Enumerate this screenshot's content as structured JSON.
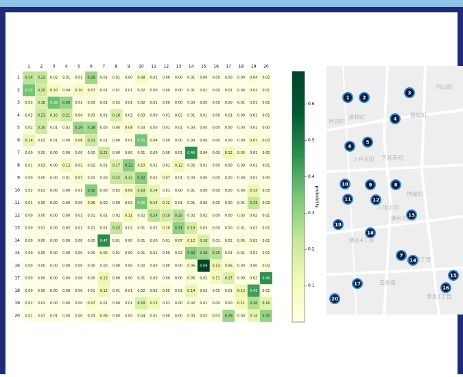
{
  "chart_data": {
    "type": "heatmap",
    "x_categories": [
      "1",
      "2",
      "3",
      "4",
      "5",
      "6",
      "7",
      "8",
      "9",
      "10",
      "11",
      "12",
      "13",
      "14",
      "15",
      "16",
      "17",
      "18",
      "19",
      "20"
    ],
    "y_categories": [
      "1",
      "2",
      "3",
      "4",
      "5",
      "6",
      "7",
      "8",
      "9",
      "10",
      "11",
      "12",
      "13",
      "14",
      "15",
      "16",
      "17",
      "18",
      "19",
      "20"
    ],
    "values": [
      [
        0.24,
        0.23,
        0.02,
        0.01,
        0.01,
        0.29,
        0.01,
        0.01,
        0.0,
        0.08,
        0.01,
        0.0,
        0.0,
        0.01,
        0.0,
        0.0,
        0.0,
        0.0,
        0.04,
        0.02
      ],
      [
        0.35,
        0.2,
        0.1,
        0.04,
        0.1,
        0.07,
        0.01,
        0.01,
        0.01,
        0.02,
        0.0,
        0.0,
        0.0,
        0.01,
        0.01,
        0.0,
        0.01,
        0.0,
        0.02,
        0.01
      ],
      [
        0.03,
        0.18,
        0.36,
        0.3,
        0.01,
        0.03,
        0.01,
        0.02,
        0.01,
        0.02,
        0.01,
        0.0,
        0.0,
        0.0,
        0.0,
        0.0,
        0.0,
        0.01,
        0.01,
        0.01
      ],
      [
        0.02,
        0.21,
        0.16,
        0.21,
        0.04,
        0.03,
        0.01,
        0.18,
        0.02,
        0.03,
        0.0,
        0.01,
        0.02,
        0.01,
        0.01,
        0.0,
        0.01,
        0.0,
        0.01,
        0.01
      ],
      [
        0.02,
        0.2,
        0.01,
        0.02,
        0.29,
        0.28,
        0.0,
        0.04,
        0.08,
        0.03,
        0.0,
        0.01,
        0.01,
        0.0,
        0.0,
        0.0,
        0.0,
        0.0,
        0.01,
        0.0
      ],
      [
        0.14,
        0.02,
        0.01,
        0.0,
        0.08,
        0.21,
        0.01,
        0.0,
        0.01,
        0.35,
        0.04,
        0.0,
        0.0,
        0.0,
        0.0,
        0.0,
        0.0,
        0.0,
        0.07,
        0.03
      ],
      [
        0.0,
        0.0,
        0.0,
        0.0,
        0.0,
        0.0,
        0.21,
        0.0,
        0.0,
        0.01,
        0.0,
        0.0,
        0.01,
        0.46,
        0.04,
        0.0,
        0.12,
        0.05,
        0.01,
        0.05
      ],
      [
        0.01,
        0.03,
        0.0,
        0.12,
        0.03,
        0.02,
        0.01,
        0.17,
        0.32,
        0.1,
        0.01,
        0.01,
        0.12,
        0.02,
        0.01,
        0.0,
        0.0,
        0.0,
        0.01,
        0.01
      ],
      [
        0.0,
        0.0,
        0.0,
        0.01,
        0.07,
        0.02,
        0.0,
        0.22,
        0.22,
        0.32,
        0.02,
        0.07,
        0.01,
        0.0,
        0.0,
        0.0,
        0.0,
        0.0,
        0.01,
        0.0
      ],
      [
        0.02,
        0.01,
        0.0,
        0.0,
        0.01,
        0.32,
        0.0,
        0.02,
        0.09,
        0.19,
        0.14,
        0.01,
        0.0,
        0.01,
        0.0,
        0.0,
        0.0,
        0.0,
        0.13,
        0.03
      ],
      [
        0.01,
        0.0,
        0.0,
        0.0,
        0.0,
        0.06,
        0.0,
        0.0,
        0.02,
        0.35,
        0.14,
        0.12,
        0.01,
        0.01,
        0.0,
        0.0,
        0.0,
        0.01,
        0.23,
        0.03
      ],
      [
        0.0,
        0.0,
        0.0,
        0.0,
        0.01,
        0.01,
        0.01,
        0.02,
        0.11,
        0.02,
        0.24,
        0.19,
        0.25,
        0.02,
        0.02,
        0.0,
        0.0,
        0.03,
        0.02,
        0.01
      ],
      [
        0.0,
        0.01,
        0.0,
        0.02,
        0.01,
        0.01,
        0.01,
        0.23,
        0.02,
        0.01,
        0.01,
        0.1,
        0.31,
        0.19,
        0.03,
        0.0,
        0.0,
        0.01,
        0.01,
        0.01
      ],
      [
        0.0,
        0.0,
        0.0,
        0.0,
        0.0,
        0.0,
        0.47,
        0.01,
        0.0,
        0.01,
        0.0,
        0.01,
        0.07,
        0.12,
        0.18,
        0.01,
        0.02,
        0.05,
        0.02,
        0.01
      ],
      [
        0.0,
        0.0,
        0.0,
        0.0,
        0.0,
        0.0,
        0.06,
        0.01,
        0.0,
        0.01,
        0.01,
        0.0,
        0.02,
        0.32,
        0.28,
        0.25,
        0.01,
        0.01,
        0.01,
        0.01
      ],
      [
        0.0,
        0.0,
        0.0,
        0.0,
        0.0,
        0.0,
        0.0,
        0.0,
        0.0,
        0.0,
        0.0,
        0.0,
        0.0,
        0.06,
        0.69,
        0.13,
        0.06,
        0.0,
        0.0,
        0.02
      ],
      [
        0.0,
        0.0,
        0.0,
        0.0,
        0.0,
        0.0,
        0.13,
        0.0,
        0.0,
        0.01,
        0.0,
        0.0,
        0.0,
        0.05,
        0.02,
        0.11,
        0.17,
        0.0,
        0.02,
        0.46
      ],
      [
        0.0,
        0.0,
        0.0,
        0.0,
        0.0,
        0.01,
        0.12,
        0.01,
        0.01,
        0.02,
        0.02,
        0.05,
        0.01,
        0.14,
        0.02,
        0.0,
        0.01,
        0.13,
        0.43,
        0.01
      ],
      [
        0.02,
        0.01,
        0.0,
        0.0,
        0.0,
        0.07,
        0.01,
        0.0,
        0.01,
        0.18,
        0.12,
        0.01,
        0.0,
        0.02,
        0.01,
        0.0,
        0.0,
        0.11,
        0.26,
        0.16
      ],
      [
        0.01,
        0.01,
        0.01,
        0.0,
        0.0,
        0.03,
        0.06,
        0.0,
        0.0,
        0.04,
        0.01,
        0.0,
        0.0,
        0.03,
        0.02,
        0.03,
        0.29,
        0.0,
        0.14,
        0.3
      ]
    ],
    "value_labels": [
      [
        "0.24",
        "0.23",
        "0.02",
        "0.01",
        "0.01",
        "0.29",
        "0.01",
        "0.01",
        "0.00",
        "0.08",
        "0.01",
        "0.00",
        "0.00",
        "0.01",
        "0.00",
        "0.00",
        "0.00",
        "0.00",
        "0.04",
        "0.02"
      ],
      [
        "0.35",
        "0.20",
        "0.10",
        "0.04",
        "0.10",
        "0.07",
        "0.01",
        "0.01",
        "0.01",
        "0.02",
        "0.00",
        "0.00",
        "0.00",
        "0.01",
        "0.01",
        "0.00",
        "0.01",
        "0.00",
        "0.02",
        "0.01"
      ],
      [
        "0.03",
        "0.18",
        "0.36",
        "0.30",
        "0.01",
        "0.03",
        "0.01",
        "0.02",
        "0.01",
        "0.02",
        "0.01",
        "0.00",
        "0.00",
        "0.00",
        "0.00",
        "0.00",
        "0.00",
        "0.01",
        "0.01",
        "0.01"
      ],
      [
        "0.02",
        "0.21",
        "0.16",
        "0.21",
        "0.04",
        "0.03",
        "0.01",
        "0.18",
        "0.02",
        "0.03",
        "0.00",
        "0.01",
        "0.02",
        "0.01",
        "0.01",
        "0.00",
        "0.01",
        "0.00",
        "0.01",
        "0.01"
      ],
      [
        "0.02",
        "0.20",
        "0.01",
        "0.02",
        "0.29",
        "0.28",
        "0.00",
        "0.04",
        "0.08",
        "0.03",
        "0.00",
        "0.01",
        "0.01",
        "0.00",
        "0.00",
        "0.00",
        "0.00",
        "0.00",
        "0.01",
        "0.00"
      ],
      [
        "0.14",
        "0.02",
        "0.01",
        "0.00",
        "0.08",
        "0.21",
        "0.01",
        "0.00",
        "0.01",
        "0.35",
        "0.04",
        "0.00",
        "0.00",
        "0.00",
        "0.00",
        "0.00",
        "0.00",
        "0.00",
        "0.07",
        "0.03"
      ],
      [
        "0.00",
        "0.00",
        "0.00",
        "0.00",
        "0.00",
        "0.00",
        "0.21",
        "0.00",
        "0.00",
        "0.01",
        "0.00",
        "0.00",
        "0.01",
        "0.46",
        "0.04",
        "0.00",
        "0.12",
        "0.05",
        "0.01",
        "0.05"
      ],
      [
        "0.01",
        "0.03",
        "0.00",
        "0.12",
        "0.03",
        "0.02",
        "0.01",
        "0.17",
        "0.32",
        "0.10",
        "0.01",
        "0.01",
        "0.12",
        "0.02",
        "0.01",
        "0.00",
        "0.00",
        "0.00",
        "0.01",
        "0.01"
      ],
      [
        "0.00",
        "0.00",
        "0.00",
        "0.01",
        "0.07",
        "0.02",
        "0.00",
        "0.22",
        "0.22",
        "0.32",
        "0.02",
        "0.07",
        "0.01",
        "0.00",
        "0.00",
        "0.00",
        "0.00",
        "0.00",
        "0.01",
        "0.00"
      ],
      [
        "0.02",
        "0.01",
        "0.00",
        "0.00",
        "0.01",
        "0.32",
        "0.00",
        "0.02",
        "0.09",
        "0.19",
        "0.14",
        "0.01",
        "0.00",
        "0.01",
        "0.00",
        "0.00",
        "0.00",
        "0.00",
        "0.13",
        "0.03"
      ],
      [
        "0.01",
        "0.00",
        "0.00",
        "0.00",
        "0.00",
        "0.06",
        "0.00",
        "0.00",
        "0.02",
        "0.35",
        "0.14",
        "0.12",
        "0.01",
        "0.01",
        "0.00",
        "0.00",
        "0.00",
        "0.01",
        "0.23",
        "0.03"
      ],
      [
        "0.00",
        "0.00",
        "0.00",
        "0.00",
        "0.01",
        "0.01",
        "0.01",
        "0.02",
        "0.11",
        "0.02",
        "0.24",
        "0.19",
        "0.25",
        "0.02",
        "0.02",
        "0.00",
        "0.00",
        "0.03",
        "0.02",
        "0.01"
      ],
      [
        "0.00",
        "0.01",
        "0.00",
        "0.02",
        "0.01",
        "0.01",
        "0.01",
        "0.23",
        "0.02",
        "0.01",
        "0.01",
        "0.10",
        "0.31",
        "0.19",
        "0.03",
        "0.00",
        "0.00",
        "0.01",
        "0.01",
        "0.01"
      ],
      [
        "0.00",
        "0.00",
        "0.00",
        "0.00",
        "0.00",
        "0.00",
        "0.47",
        "0.01",
        "0.00",
        "0.01",
        "0.00",
        "0.01",
        "0.07",
        "0.12",
        "0.18",
        "0.01",
        "0.02",
        "0.05",
        "0.02",
        "0.01"
      ],
      [
        "0.00",
        "0.00",
        "0.00",
        "0.00",
        "0.00",
        "0.00",
        "0.06",
        "0.01",
        "0.00",
        "0.01",
        "0.01",
        "0.00",
        "0.02",
        "0.32",
        "0.28",
        "0.25",
        "0.01",
        "0.01",
        "0.01",
        "0.01"
      ],
      [
        "0.00",
        "0.00",
        "0.00",
        "0.00",
        "0.00",
        "0.00",
        "0.00",
        "0.00",
        "0.00",
        "0.00",
        "0.00",
        "0.00",
        "0.00",
        "0.06",
        "0.69",
        "0.13",
        "0.06",
        "0.00",
        "0.00",
        "0.02"
      ],
      [
        "0.00",
        "0.00",
        "0.00",
        "0.00",
        "0.00",
        "0.00",
        "0.13",
        "0.00",
        "0.00",
        "0.01",
        "0.00",
        "0.00",
        "0.00",
        "0.05",
        "0.02",
        "0.11",
        "0.17",
        "0.00",
        "0.02",
        "0.46"
      ],
      [
        "0.00",
        "0.00",
        "0.00",
        "0.00",
        "0.00",
        "0.01",
        "0.12",
        "0.01",
        "0.01",
        "0.02",
        "0.02",
        "0.05",
        "0.01",
        "0.14",
        "0.02",
        "0.00",
        "0.01",
        "0.13",
        "0.43",
        "0.01"
      ],
      [
        "0.02",
        "0.01",
        "0.00",
        "0.00",
        "0.00",
        "0.07",
        "0.01",
        "0.00",
        "0.01",
        "0.18",
        "0.12",
        "0.01",
        "0.00",
        "0.02",
        "0.01",
        "0.00",
        "0.00",
        "0.11",
        "0.26",
        "0.16"
      ],
      [
        "0.01",
        "0.01",
        "0.01",
        "0.00",
        "0.00",
        "0.03",
        "0.06",
        "0.00",
        "0.00",
        "0.04",
        "0.01",
        "0.00",
        "0.00",
        "0.03",
        "0.02",
        "0.03",
        "0.29",
        "0.00",
        "0.14",
        "0.30"
      ]
    ],
    "clim": [
      0,
      0.69
    ],
    "cticks": [
      0.1,
      0.2,
      0.3,
      0.4,
      0.5,
      0.6
    ],
    "colorbar_label": "probability",
    "colormap": [
      "#ffffe5",
      "#f3fab6",
      "#c4e699",
      "#7ac67a",
      "#2d9050",
      "#005a32",
      "#004529"
    ]
  },
  "map": {
    "places": [
      "円山町",
      "清井町",
      "月見町",
      "鷲尾町",
      "上弁天町",
      "下弁天町",
      "八坂上町",
      "桝屋町",
      "清水3丁目",
      "清水4丁目",
      "清水2丁目",
      "五条坂",
      "清水1丁目"
    ],
    "markers": [
      "1",
      "2",
      "3",
      "4",
      "5",
      "6",
      "7",
      "8",
      "9",
      "10",
      "11",
      "12",
      "13",
      "14",
      "15",
      "16",
      "17",
      "18",
      "19",
      "20"
    ]
  }
}
